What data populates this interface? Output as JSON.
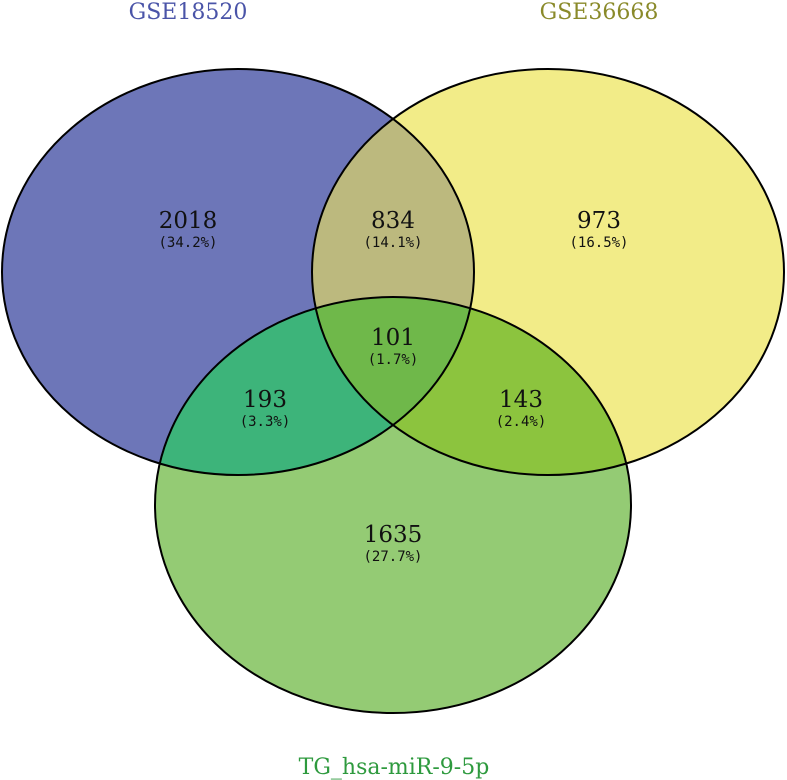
{
  "sets": [
    {
      "id": "a",
      "label": "GSE18520",
      "color": "#4a54a8"
    },
    {
      "id": "b",
      "label": "GSE36668",
      "color": "#8a8a2a"
    },
    {
      "id": "c",
      "label": "TG_hsa-miR-9-5p",
      "color": "#2e9a3e"
    }
  ],
  "colors": {
    "a_only": "#6d76b8",
    "b_only": "#f2ec88",
    "c_only": "#94cb74",
    "ab": "#bcb97e",
    "ac": "#3db47a",
    "bc": "#8cc43e",
    "abc": "#6fb84a",
    "outline": "#000000"
  },
  "regions": {
    "a_only": {
      "count": "2018",
      "percent": "(34.2%)"
    },
    "b_only": {
      "count": "973",
      "percent": "(16.5%)"
    },
    "c_only": {
      "count": "1635",
      "percent": "(27.7%)"
    },
    "ab": {
      "count": "834",
      "percent": "(14.1%)"
    },
    "ac": {
      "count": "193",
      "percent": "(3.3%)"
    },
    "bc": {
      "count": "143",
      "percent": "(2.4%)"
    },
    "abc": {
      "count": "101",
      "percent": "(1.7%)"
    }
  }
}
